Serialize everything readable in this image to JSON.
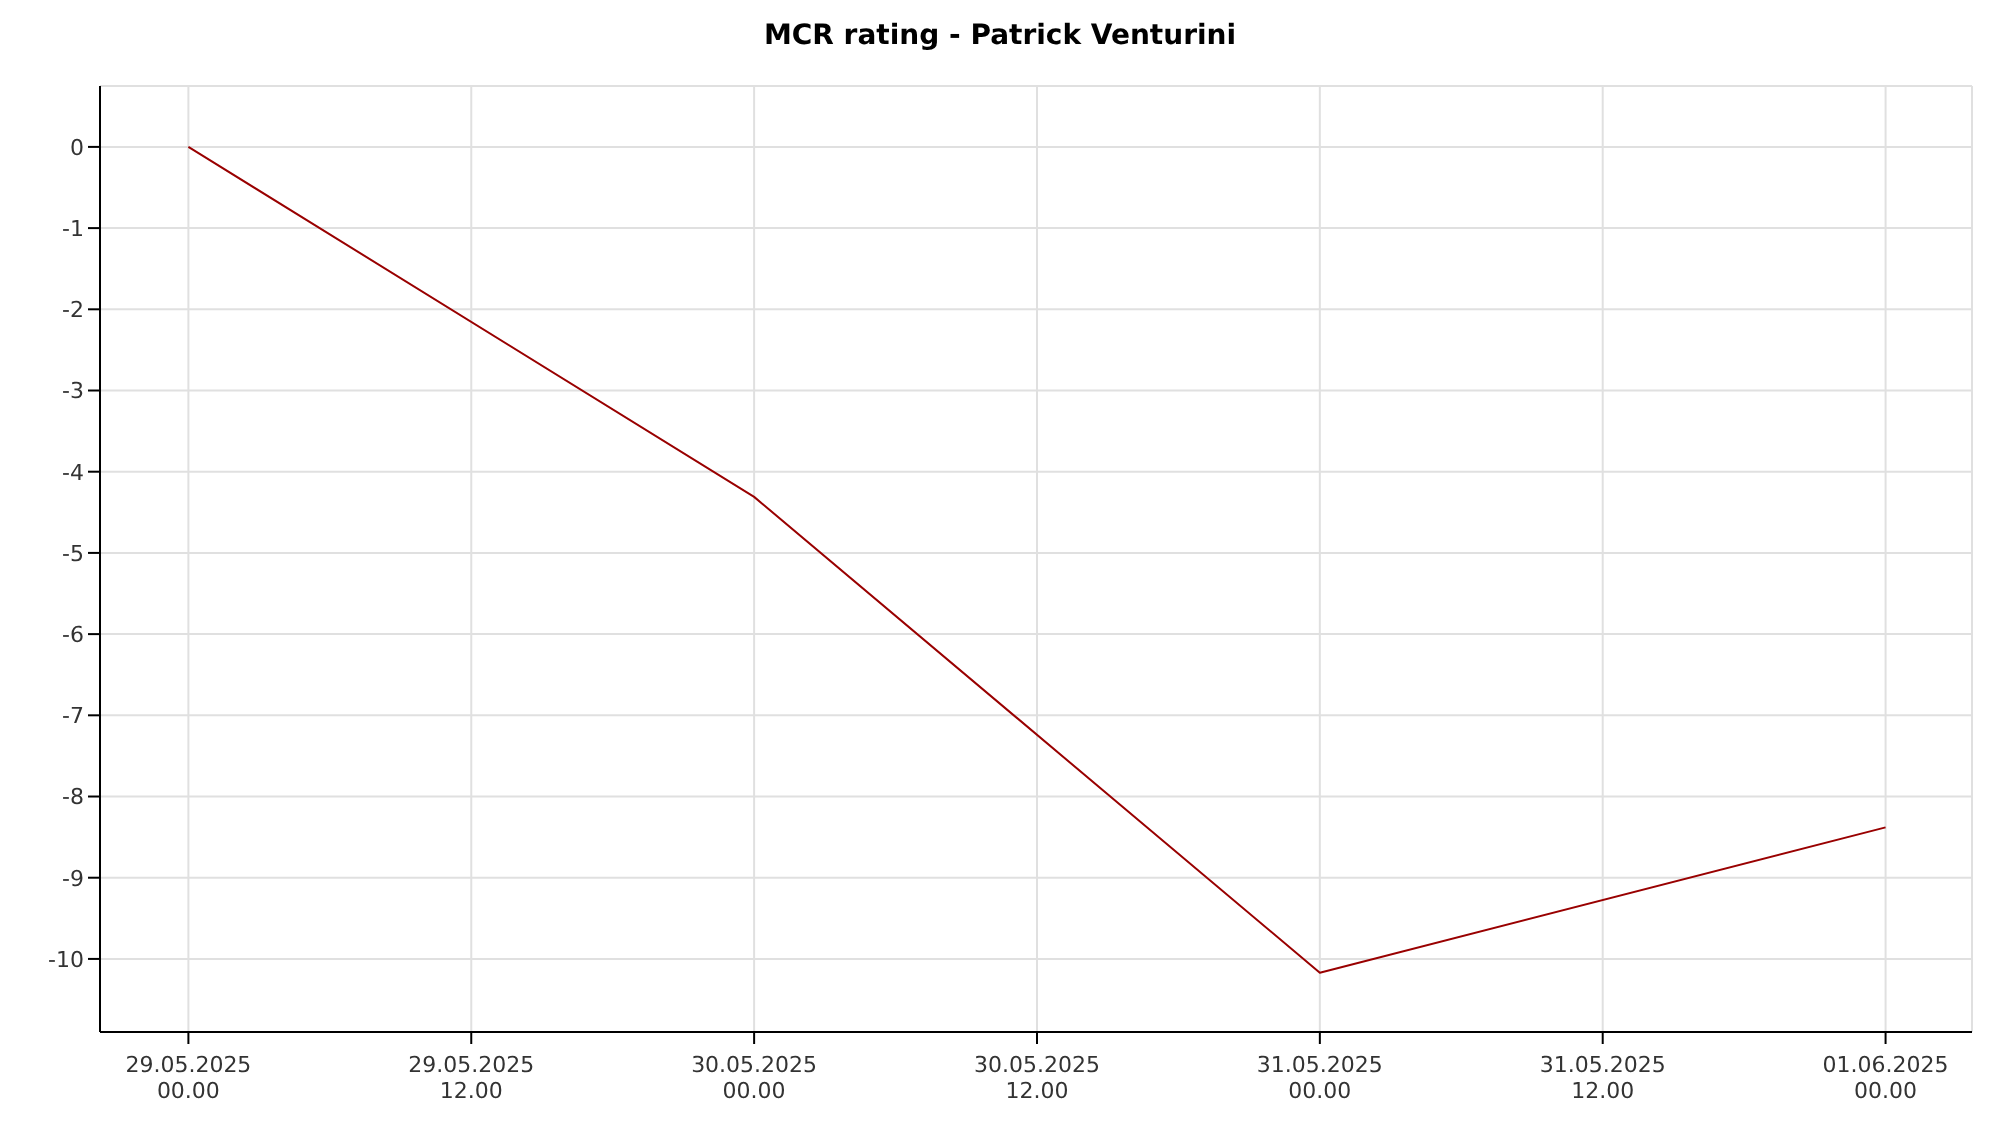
{
  "chart_data": {
    "type": "line",
    "title": "MCR rating - Patrick Venturini",
    "x": [
      "2025-05-29T00:00",
      "2025-05-30T00:00",
      "2025-05-31T00:00",
      "2025-06-01T00:00"
    ],
    "series": [
      {
        "color": "#990000",
        "values": [
          0,
          -4.31,
          -10.17,
          -8.38
        ]
      }
    ],
    "xlim": [
      "2025-05-28T20:15",
      "2025-06-01T03:40"
    ],
    "xticks": [
      {
        "value": "2025-05-29T00:00",
        "label": "29.05.2025 00.00"
      },
      {
        "value": "2025-05-29T12:00",
        "label": "29.05.2025 12.00"
      },
      {
        "value": "2025-05-30T00:00",
        "label": "30.05.2025 00.00"
      },
      {
        "value": "2025-05-30T12:00",
        "label": "30.05.2025 12.00"
      },
      {
        "value": "2025-05-31T00:00",
        "label": "31.05.2025 00.00"
      },
      {
        "value": "2025-05-31T12:00",
        "label": "31.05.2025 12.00"
      },
      {
        "value": "2025-06-01T00:00",
        "label": "01.06.2025 00.00"
      }
    ],
    "ylim": [
      -10.9,
      0.75
    ],
    "yticks": [
      -10,
      -9,
      -8,
      -7,
      -6,
      -5,
      -4,
      -3,
      -2,
      -1,
      0
    ],
    "grid": true,
    "legend": false,
    "marker": "none",
    "line_style": "solid"
  }
}
